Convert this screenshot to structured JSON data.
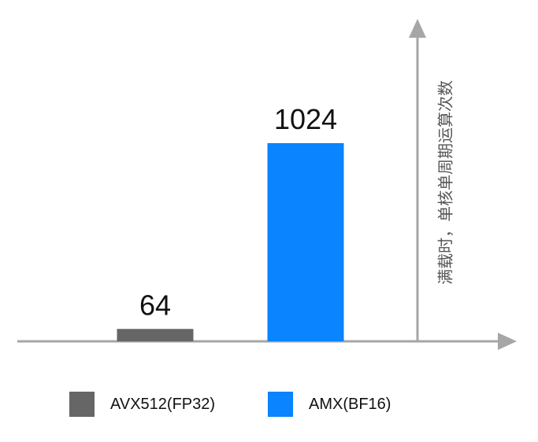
{
  "chart_data": {
    "type": "bar",
    "categories": [
      "AVX512(FP32)",
      "AMX(BF16)"
    ],
    "values": [
      64,
      1024
    ],
    "colors": [
      "#666666",
      "#0a84ff"
    ],
    "data_labels": [
      "64",
      "1024"
    ],
    "title": "",
    "xlabel": "",
    "ylabel": "满载时，单核单周期运算次数",
    "ylim": [
      0,
      1024
    ],
    "grid": false,
    "legend_position": "bottom",
    "axis_color": "#a6a6a6"
  },
  "legend": {
    "items": [
      {
        "label": "AVX512(FP32)",
        "color": "#666666"
      },
      {
        "label": "AMX(BF16)",
        "color": "#0a84ff"
      }
    ]
  }
}
